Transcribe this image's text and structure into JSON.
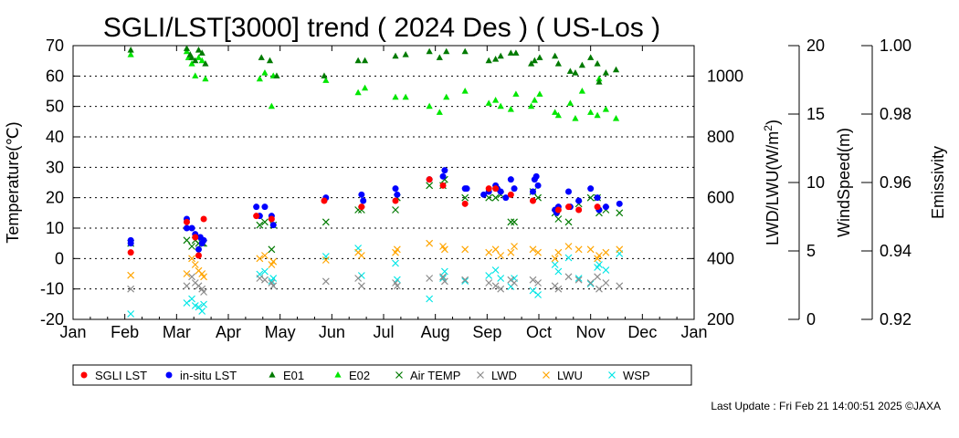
{
  "chart_data": {
    "type": "scatter",
    "title": "SGLI/LST[3000] trend ( 2024 Des ) ( US-Los )",
    "footer": "Last Update : Fri Feb 21 14:00:51 2025 ©JAXA",
    "x_tick_labels": [
      "Jan",
      "Feb",
      "Mar",
      "Apr",
      "May",
      "Jun",
      "Jul",
      "Aug",
      "Sep",
      "Oct",
      "Nov",
      "Dec",
      "Jan"
    ],
    "axes": {
      "temperature": {
        "label": "Temperature(℃)",
        "ylim": [
          -20,
          70
        ],
        "ticks": [
          70,
          60,
          50,
          40,
          30,
          20,
          10,
          0,
          -10,
          -20
        ]
      },
      "lwd_lwu": {
        "label_main": "LWD/LWU(W/m",
        "label_sup": "2",
        "label_end": ")",
        "ylim": [
          200,
          1100
        ],
        "ticks": [
          1000,
          800,
          600,
          400,
          200
        ]
      },
      "windspeed": {
        "label": "WindSpeed(m)",
        "ylim": [
          0,
          20
        ],
        "ticks": [
          20,
          15,
          10,
          5,
          0
        ]
      },
      "emissivity": {
        "label": "Emissivity",
        "ylim": [
          0.92,
          1.0
        ],
        "ticks": [
          "1.00",
          "0.98",
          "0.96",
          "0.94",
          "0.92"
        ]
      }
    },
    "colors": {
      "sgli": "#ff0000",
      "insitu": "#0000ff",
      "e01": "#007a00",
      "e02": "#00e600",
      "airtemp": "#007a00",
      "lwd": "#8c8c8c",
      "lwu": "#ffa500",
      "wsp": "#00e6e6"
    },
    "legend": [
      {
        "key": "sgli",
        "label": "SGLI LST",
        "marker": "dot"
      },
      {
        "key": "insitu",
        "label": "in-situ LST",
        "marker": "dot"
      },
      {
        "key": "e01",
        "label": "E01",
        "marker": "tri"
      },
      {
        "key": "e02",
        "label": "E02",
        "marker": "tri"
      },
      {
        "key": "airtemp",
        "label": "Air TEMP",
        "marker": "x"
      },
      {
        "key": "lwd",
        "label": "LWD",
        "marker": "x"
      },
      {
        "key": "lwu",
        "label": "LWU",
        "marker": "x"
      },
      {
        "key": "wsp",
        "label": "WSP",
        "marker": "x"
      }
    ],
    "series": {
      "insitu": {
        "x": [
          34,
          34,
          67,
          67,
          70,
          72,
          74,
          75,
          76,
          77,
          108,
          110,
          113,
          117,
          118,
          149,
          170,
          171,
          190,
          191,
          210,
          218,
          219,
          231,
          232,
          242,
          245,
          249,
          250,
          252,
          255,
          258,
          260,
          271,
          272,
          273,
          274,
          284,
          285,
          286,
          292,
          293,
          298,
          305,
          309,
          310,
          314,
          322
        ],
        "y": [
          6,
          5,
          13,
          10,
          10,
          8,
          3,
          7,
          5,
          6,
          17,
          14,
          17,
          14,
          11,
          20,
          21,
          19,
          23,
          21,
          26,
          27,
          29,
          23,
          23,
          21,
          22,
          24,
          23,
          22,
          20,
          26,
          23,
          22,
          26,
          27,
          24,
          16,
          15,
          17,
          22,
          17,
          19,
          23,
          20,
          16,
          17,
          18
        ]
      },
      "sgli": {
        "x": [
          34,
          67,
          72,
          74,
          77,
          108,
          117,
          148,
          170,
          190,
          210,
          218,
          231,
          245,
          249,
          258,
          271,
          286,
          292,
          298,
          309
        ],
        "y": [
          2,
          12,
          7,
          1,
          13,
          14,
          13,
          19,
          17,
          19,
          26,
          24,
          18,
          23,
          23,
          21,
          19,
          16,
          17,
          16,
          17
        ]
      },
      "airtemp": {
        "x": [
          34,
          67,
          70,
          72,
          74,
          76,
          77,
          110,
          113,
          117,
          118,
          149,
          168,
          170,
          190,
          191,
          210,
          218,
          219,
          231,
          245,
          249,
          252,
          258,
          260,
          271,
          274,
          284,
          286,
          292,
          298,
          305,
          309,
          310,
          314,
          322
        ],
        "y": [
          5,
          6,
          4,
          6,
          5,
          5,
          5,
          11,
          12,
          3,
          11,
          12,
          16,
          16,
          16,
          20,
          24,
          24,
          26,
          20,
          20,
          20,
          21,
          12,
          12,
          22,
          20,
          15,
          13,
          12,
          18,
          20,
          20,
          15,
          16,
          15
        ]
      },
      "e01": {
        "x": [
          34,
          67,
          69,
          70,
          72,
          74,
          76,
          78,
          111,
          116,
          120,
          148,
          168,
          172,
          190,
          196,
          210,
          216,
          220,
          231,
          245,
          249,
          252,
          258,
          261,
          270,
          272,
          275,
          284,
          286,
          293,
          296,
          300,
          305,
          309,
          310,
          314,
          320
        ],
        "y": [
          1085,
          1090,
          1070,
          1060,
          1050,
          1085,
          1075,
          1040,
          1060,
          1050,
          1000,
          1000,
          1050,
          1050,
          1065,
          1070,
          1080,
          1060,
          1080,
          1080,
          1050,
          1055,
          1065,
          1075,
          1075,
          1040,
          1050,
          1060,
          1065,
          1040,
          1015,
          1010,
          1035,
          1060,
          1040,
          980,
          1010,
          1020
        ]
      },
      "e02": {
        "x": [
          34,
          67,
          68,
          70,
          72,
          74,
          76,
          78,
          110,
          113,
          117,
          118,
          149,
          168,
          172,
          190,
          196,
          210,
          216,
          220,
          231,
          245,
          249,
          252,
          258,
          261,
          270,
          272,
          275,
          284,
          286,
          293,
          296,
          300,
          305,
          309,
          310,
          314,
          320
        ],
        "y": [
          1070,
          1080,
          1060,
          1040,
          1000,
          1060,
          1050,
          990,
          990,
          1010,
          900,
          1000,
          985,
          945,
          960,
          930,
          930,
          900,
          880,
          930,
          950,
          910,
          920,
          900,
          890,
          940,
          900,
          920,
          940,
          880,
          870,
          910,
          860,
          950,
          880,
          870,
          990,
          890,
          860
        ]
      },
      "lwd": {
        "x": [
          34,
          67,
          70,
          72,
          74,
          76,
          77,
          110,
          113,
          117,
          118,
          149,
          168,
          170,
          190,
          191,
          210,
          218,
          219,
          231,
          245,
          249,
          252,
          258,
          260,
          271,
          274,
          284,
          286,
          292,
          298,
          305,
          309,
          310,
          314,
          322
        ],
        "y": [
          300,
          310,
          340,
          320,
          310,
          300,
          290,
          335,
          330,
          320,
          310,
          325,
          335,
          310,
          320,
          310,
          335,
          340,
          325,
          330,
          320,
          310,
          300,
          330,
          320,
          330,
          320,
          310,
          300,
          340,
          330,
          320,
          340,
          300,
          320,
          310
        ]
      },
      "lwu": {
        "x": [
          34,
          67,
          70,
          72,
          74,
          76,
          77,
          110,
          113,
          117,
          118,
          149,
          168,
          170,
          190,
          191,
          210,
          218,
          219,
          231,
          245,
          249,
          252,
          258,
          260,
          271,
          274,
          284,
          286,
          292,
          298,
          305,
          309,
          310,
          314,
          322
        ],
        "y": [
          345,
          350,
          400,
          380,
          360,
          350,
          340,
          400,
          410,
          380,
          390,
          395,
          420,
          410,
          420,
          430,
          450,
          440,
          430,
          430,
          420,
          430,
          410,
          420,
          440,
          430,
          420,
          400,
          420,
          440,
          430,
          430,
          400,
          410,
          420,
          430
        ]
      },
      "wsp": {
        "x": [
          34,
          67,
          70,
          72,
          74,
          76,
          77,
          110,
          113,
          117,
          118,
          149,
          168,
          170,
          190,
          191,
          210,
          218,
          219,
          231,
          245,
          249,
          252,
          258,
          260,
          271,
          274,
          284,
          286,
          292,
          298,
          305,
          309,
          310,
          314,
          322
        ],
        "y": [
          0.4,
          1.2,
          1.5,
          1.0,
          0.9,
          0.6,
          1.1,
          3.3,
          3.5,
          2.8,
          3.0,
          4.6,
          5.2,
          3.2,
          4.1,
          2.9,
          1.5,
          3.0,
          3.5,
          2.8,
          3.2,
          3.6,
          3.0,
          2.4,
          3.0,
          2.1,
          1.8,
          4.0,
          3.5,
          4.5,
          3.0,
          2.6,
          3.8,
          4.0,
          3.6,
          4.8
        ]
      }
    }
  }
}
